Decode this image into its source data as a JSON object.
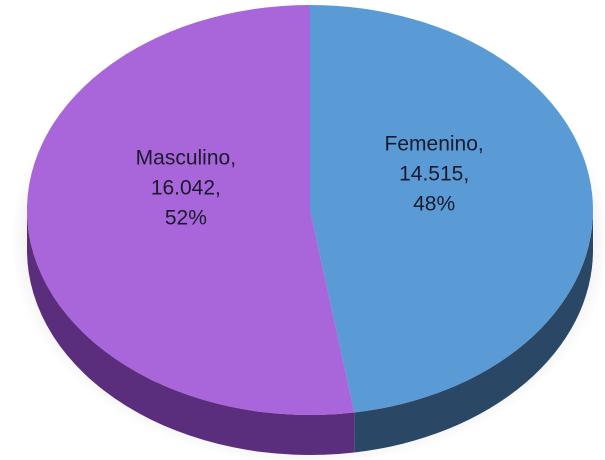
{
  "chart_data": {
    "type": "pie",
    "categories": [
      "Femenino,",
      "Masculino,"
    ],
    "values": [
      14515,
      16042
    ],
    "value_labels": [
      "14.515,",
      "16.042,"
    ],
    "percents": [
      48,
      52
    ],
    "percent_labels": [
      "48%",
      "52%"
    ],
    "colors": [
      "#5b9bd5",
      "#a866da"
    ],
    "side_colors": [
      "#2a4866",
      "#5b2e7d"
    ]
  }
}
